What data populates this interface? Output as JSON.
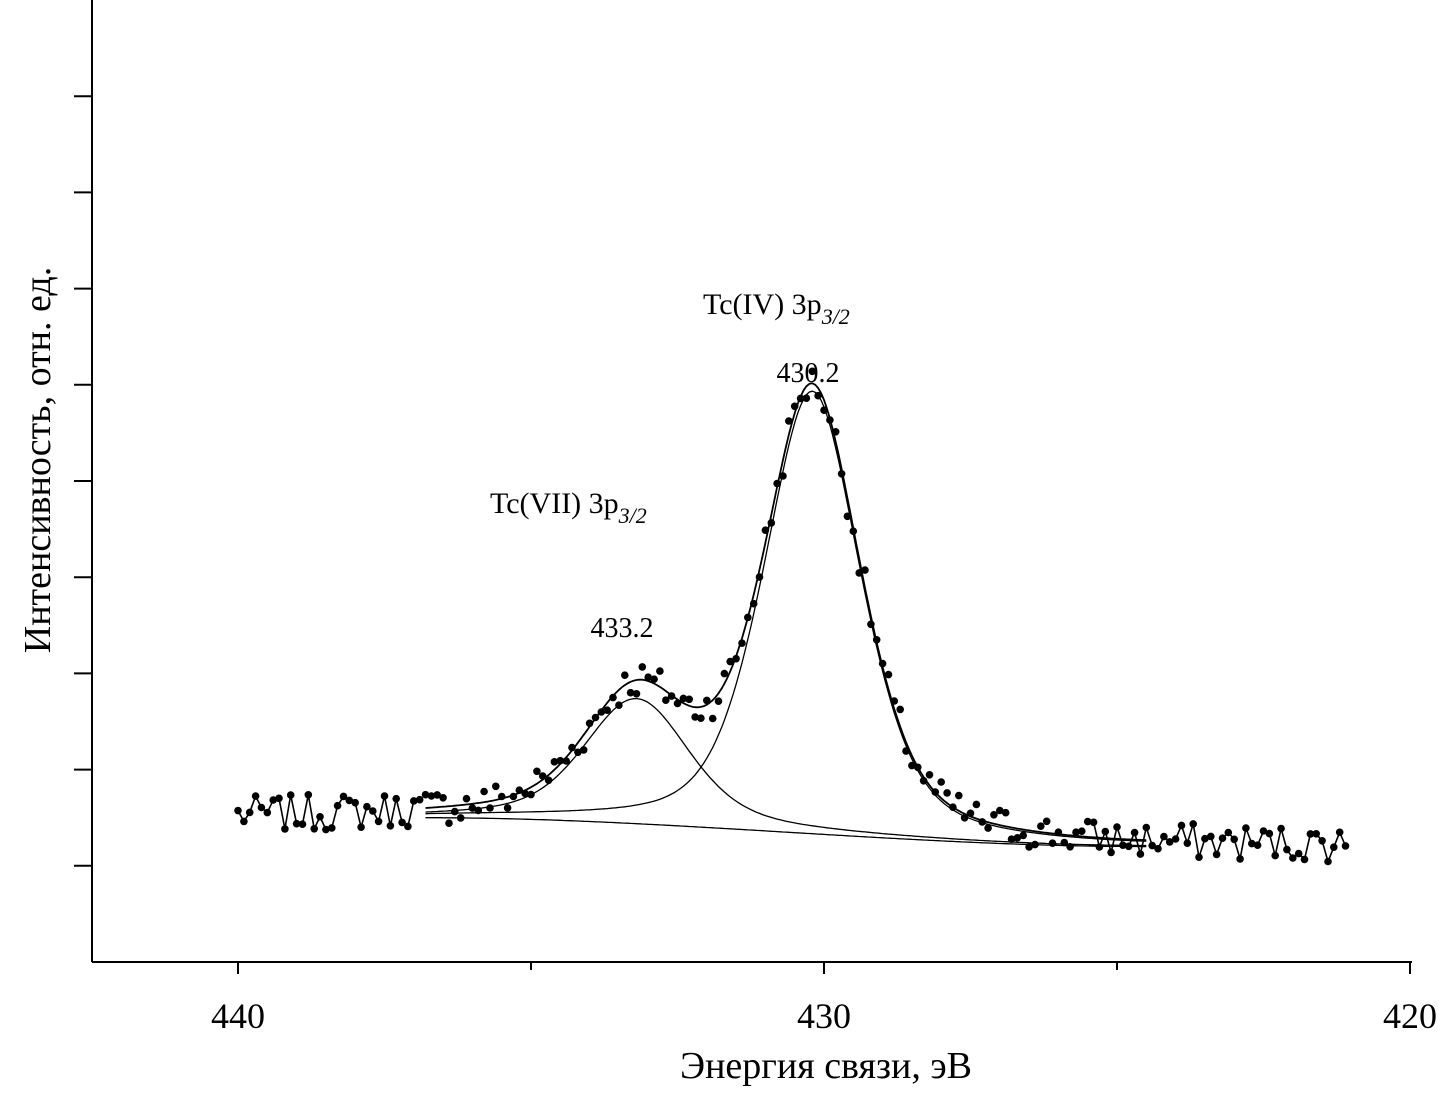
{
  "chart_data": {
    "type": "scatter",
    "xlabel": "Энергия связи, эВ",
    "ylabel": "Интенсивность, отн. ед.",
    "xlim": [
      442.5,
      420
    ],
    "ylim": [
      0,
      10
    ],
    "x_ticks": [
      "440",
      "430",
      "420"
    ],
    "x_tick_values": [
      440,
      430,
      420
    ],
    "x_reversed": true,
    "y_tick_labels_shown": false,
    "grid": false,
    "legend": "none",
    "peaks": [
      {
        "label": "Tc(VII) 3p",
        "subscript": "3/2",
        "position": 433.2,
        "position_label": "433.2",
        "height": 1.3,
        "sigma": 0.85,
        "gamma": 1.2
      },
      {
        "label": "Tc(IV) 3p",
        "subscript": "3/2",
        "position": 430.2,
        "position_label": "430.2",
        "height": 4.6,
        "sigma": 0.85,
        "gamma": 0.95
      }
    ],
    "background": {
      "type": "shirley",
      "high_energy_level": 1.5,
      "low_energy_level": 1.2,
      "range": [
        436.8,
        424.5
      ]
    },
    "series": [
      {
        "role": "measured",
        "style": "points",
        "x_start": 440,
        "x_end": 421.1,
        "x_step": 0.1
      }
    ],
    "fit_curves": [
      "envelope",
      "Tc(VII) 3p3/2 component",
      "Tc(IV) 3p3/2 component",
      "background"
    ]
  }
}
